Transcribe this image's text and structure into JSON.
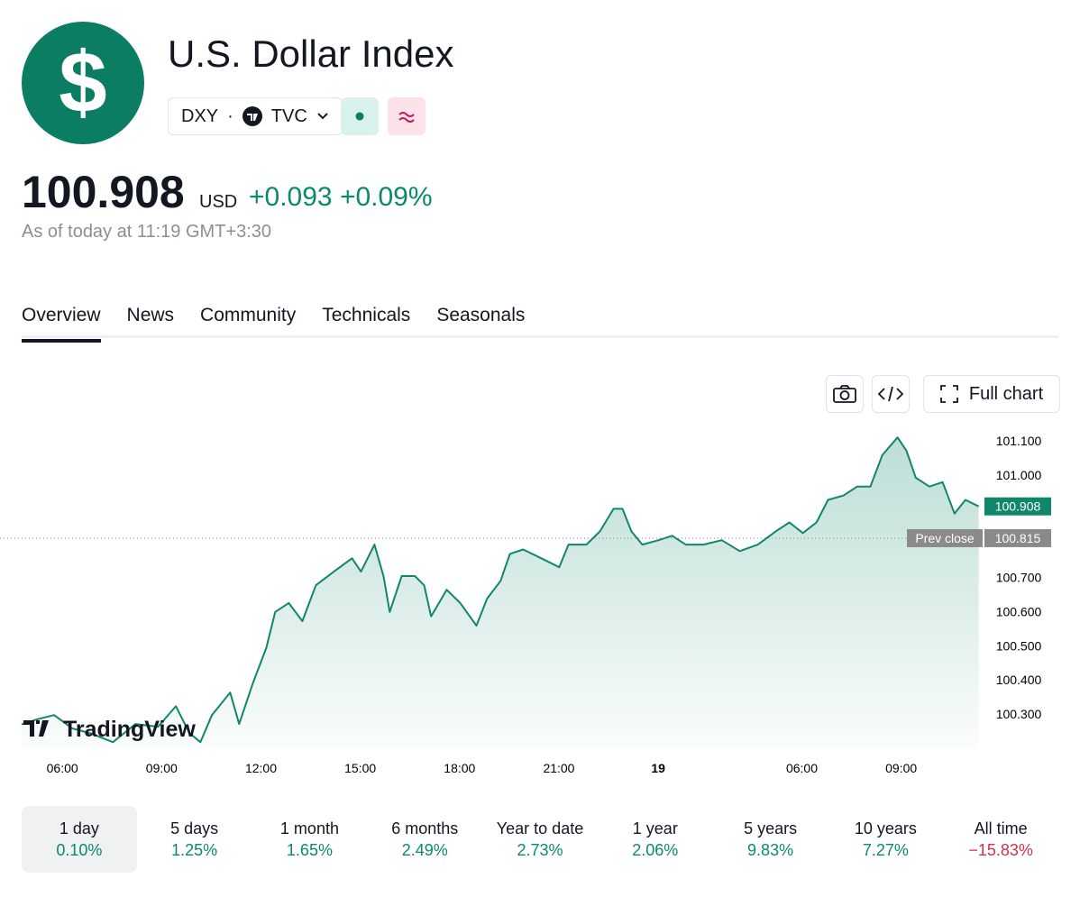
{
  "header": {
    "logo": "$",
    "title": "U.S. Dollar Index",
    "symbol": "DXY",
    "exchange": "TVC"
  },
  "price": {
    "value": "100.908",
    "currency": "USD",
    "change": "+0.093",
    "change_pct": "+0.09%",
    "as_of": "As of today at 11:19 GMT+3:30"
  },
  "tabs": [
    "Overview",
    "News",
    "Community",
    "Technicals",
    "Seasonals"
  ],
  "toolbar": {
    "full_chart": "Full chart"
  },
  "chart_watermark": "TradingView",
  "chart_data": {
    "type": "line",
    "color": "#10876a",
    "x": [
      4.77,
      5.21,
      5.75,
      6.3,
      6.84,
      7.53,
      8.21,
      8.89,
      9.43,
      9.84,
      10.17,
      10.52,
      11.07,
      11.34,
      11.75,
      12.16,
      12.43,
      12.84,
      13.25,
      13.66,
      14.2,
      14.75,
      15.02,
      15.43,
      15.7,
      15.89,
      16.25,
      16.65,
      16.93,
      17.14,
      17.61,
      18.02,
      18.51,
      18.83,
      19.24,
      19.52,
      19.92,
      20.47,
      21.01,
      21.29,
      21.83,
      22.24,
      22.65,
      22.92,
      23.19,
      23.52,
      24.01,
      24.42,
      24.83,
      25.37,
      25.92,
      26.46,
      27.01,
      27.55,
      27.96,
      28.37,
      28.78,
      29.13,
      29.6,
      30.01,
      30.41,
      30.77,
      31.23,
      31.5,
      31.78,
      32.19,
      32.59,
      32.95,
      33.28,
      33.68
    ],
    "values": [
      100.27,
      100.284,
      100.297,
      100.258,
      100.244,
      100.218,
      100.271,
      100.263,
      100.323,
      100.244,
      100.218,
      100.297,
      100.363,
      100.271,
      100.389,
      100.494,
      100.599,
      100.625,
      100.572,
      100.677,
      100.717,
      100.756,
      100.717,
      100.796,
      100.704,
      100.599,
      100.704,
      100.704,
      100.677,
      100.586,
      100.664,
      100.625,
      100.559,
      100.638,
      100.69,
      100.769,
      100.782,
      100.756,
      100.73,
      100.796,
      100.796,
      100.835,
      100.901,
      100.901,
      100.835,
      100.796,
      100.809,
      100.822,
      100.796,
      100.796,
      100.809,
      100.777,
      100.796,
      100.835,
      100.861,
      100.83,
      100.861,
      100.927,
      100.94,
      100.966,
      100.966,
      101.058,
      101.11,
      101.071,
      100.992,
      100.966,
      100.979,
      100.887,
      100.927,
      100.908
    ],
    "xlim": [
      4.77,
      33.8
    ],
    "ylim": [
      100.2,
      101.15
    ],
    "xticks": [
      {
        "value": 6,
        "label": "06:00"
      },
      {
        "value": 9,
        "label": "09:00"
      },
      {
        "value": 12,
        "label": "12:00"
      },
      {
        "value": 15,
        "label": "15:00"
      },
      {
        "value": 18,
        "label": "18:00"
      },
      {
        "value": 21,
        "label": "21:00"
      },
      {
        "value": 24,
        "label": "19"
      },
      {
        "value": 28.34,
        "label": "06:00"
      },
      {
        "value": 31.34,
        "label": "09:00"
      }
    ],
    "yticks": [
      {
        "value": 101.1,
        "label": "101.100"
      },
      {
        "value": 101.0,
        "label": "101.000"
      },
      {
        "value": 100.7,
        "label": "100.700"
      },
      {
        "value": 100.6,
        "label": "100.600"
      },
      {
        "value": 100.5,
        "label": "100.500"
      },
      {
        "value": 100.4,
        "label": "100.400"
      },
      {
        "value": 100.3,
        "label": "100.300"
      }
    ],
    "prev_close": {
      "label": "Prev close",
      "value": 100.815
    },
    "last_price": 100.908
  },
  "periods": [
    {
      "label": "1 day",
      "value": "0.10%"
    },
    {
      "label": "5 days",
      "value": "1.25%"
    },
    {
      "label": "1 month",
      "value": "1.65%"
    },
    {
      "label": "6 months",
      "value": "2.49%"
    },
    {
      "label": "Year to date",
      "value": "2.73%"
    },
    {
      "label": "1 year",
      "value": "2.06%"
    },
    {
      "label": "5 years",
      "value": "9.83%"
    },
    {
      "label": "10 years",
      "value": "7.27%"
    },
    {
      "label": "All time",
      "value": "−15.83%"
    }
  ]
}
